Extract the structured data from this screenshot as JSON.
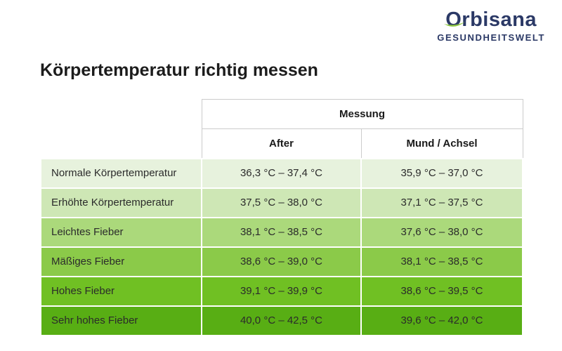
{
  "logo": {
    "brand": "Orbisana",
    "subtitle": "GESUNDHEITSWELT",
    "brand_color": "#2b3966",
    "leaf_color": "#8dc63f"
  },
  "page": {
    "title": "Körpertemperatur richtig messen"
  },
  "table": {
    "header": {
      "group_label": "Messung",
      "col_after": "After",
      "col_mund": "Mund / Achsel"
    },
    "rows": [
      {
        "label": "Normale Körpertemperatur",
        "after": "36,3 °C – 37,4 °C",
        "mund": "35,9 °C – 37,0 °C",
        "color": "#e7f2dd"
      },
      {
        "label": "Erhöhte Körpertemperatur",
        "after": "37,5 °C – 38,0 °C",
        "mund": "37,1 °C – 37,5 °C",
        "color": "#cee7b5"
      },
      {
        "label": "Leichtes Fieber",
        "after": "38,1 °C – 38,5 °C",
        "mund": "37,6 °C – 38,0 °C",
        "color": "#abd97b"
      },
      {
        "label": "Mäßiges Fieber",
        "after": "38,6 °C – 39,0 °C",
        "mund": "38,1 °C – 38,5 °C",
        "color": "#8bca49"
      },
      {
        "label": "Hohes Fieber",
        "after": "39,1 °C – 39,9 °C",
        "mund": "38,6 °C – 39,5 °C",
        "color": "#70c023"
      },
      {
        "label": "Sehr hohes Fieber",
        "after": "40,0 °C – 42,5 °C",
        "mund": "39,6 °C – 42,0 °C",
        "color": "#58ae14"
      }
    ]
  }
}
